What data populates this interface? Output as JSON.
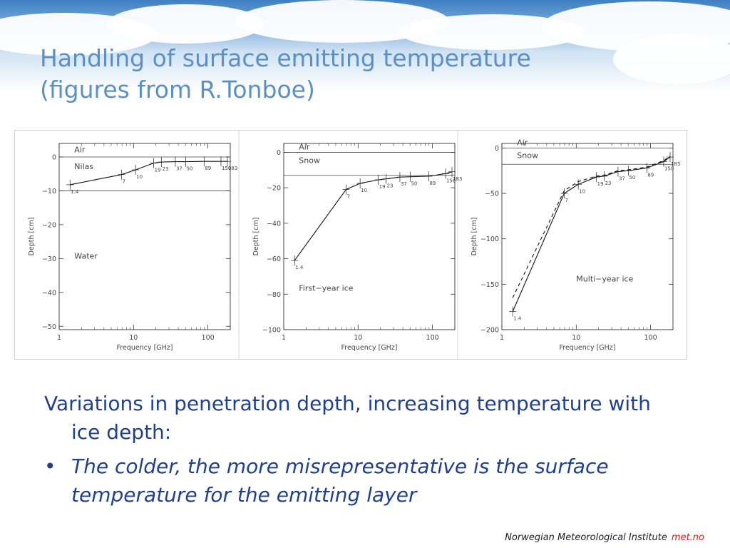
{
  "slide": {
    "title_line1": "Handling of surface emitting temperature",
    "title_line2": "(figures from R.Tonboe)",
    "paragraph": "Variations in penetration depth, increasing temperature with ice depth:",
    "bullet": "The colder, the more misrepresentative is the surface temperature for the emitting layer",
    "footer_org": "Norwegian Meteorological Institute",
    "footer_brand": "met.no",
    "colors": {
      "title": "#5a8fc7",
      "body": "#1f3f8f",
      "brand": "#d02020"
    }
  },
  "chart_data": [
    {
      "type": "line",
      "xscale": "log",
      "xlabel": "Frequency [GHz]",
      "ylabel": "Depth [cm]",
      "xlim": [
        1,
        200
      ],
      "ylim": [
        -51,
        4
      ],
      "xticks": [
        1,
        10,
        100
      ],
      "yticks": [
        0,
        -10,
        -20,
        -30,
        -40,
        -50
      ],
      "layer_lines": [
        0,
        -10
      ],
      "layer_labels": [
        {
          "text": "Air",
          "x": 1.6,
          "y": 1.4
        },
        {
          "text": "Nilas",
          "x": 1.6,
          "y": -3.6
        },
        {
          "text": "Water",
          "x": 1.6,
          "y": -30
        }
      ],
      "series": [
        {
          "style": "solid",
          "x": [
            1.4,
            6.9,
            10.65,
            18.7,
            23.8,
            36.5,
            50.3,
            89,
            150,
            183
          ],
          "y": [
            -8.2,
            -5.2,
            -3.8,
            -1.8,
            -1.5,
            -1.4,
            -1.4,
            -1.3,
            -1.3,
            -1.3
          ]
        }
      ],
      "point_labels": [
        {
          "text": "1.4",
          "x": 1.4,
          "y": -8.2
        },
        {
          "text": "7",
          "x": 6.9,
          "y": -5.2
        },
        {
          "text": "10",
          "x": 10.65,
          "y": -3.8
        },
        {
          "text": "19",
          "x": 18.7,
          "y": -1.8
        },
        {
          "text": "23",
          "x": 23.8,
          "y": -1.5
        },
        {
          "text": "37",
          "x": 36.5,
          "y": -1.4
        },
        {
          "text": "50",
          "x": 50.3,
          "y": -1.4
        },
        {
          "text": "89",
          "x": 89,
          "y": -1.3
        },
        {
          "text": "150",
          "x": 150,
          "y": -1.3
        },
        {
          "text": "183",
          "x": 183,
          "y": -1.3
        }
      ]
    },
    {
      "type": "line",
      "xscale": "log",
      "xlabel": "Frequency [GHz]",
      "ylabel": "Depth [cm]",
      "xlim": [
        1,
        200
      ],
      "ylim": [
        -100,
        5
      ],
      "xticks": [
        1,
        10,
        100
      ],
      "yticks": [
        0,
        -20,
        -40,
        -60,
        -80,
        -100
      ],
      "layer_lines": [
        0,
        -13
      ],
      "layer_labels": [
        {
          "text": "Air",
          "x": 1.6,
          "y": 1.5
        },
        {
          "text": "Snow",
          "x": 1.6,
          "y": -6
        },
        {
          "text": "First−year ice",
          "x": 1.6,
          "y": -78
        }
      ],
      "series": [
        {
          "style": "solid",
          "x": [
            1.4,
            6.9,
            10.65,
            18.7,
            23.8,
            36.5,
            50.3,
            89,
            150,
            183
          ],
          "y": [
            -61,
            -21,
            -17.5,
            -15.5,
            -15,
            -14,
            -13.8,
            -13.5,
            -12,
            -11
          ]
        }
      ],
      "point_labels": [
        {
          "text": "1.4",
          "x": 1.4,
          "y": -61
        },
        {
          "text": "7",
          "x": 6.9,
          "y": -21
        },
        {
          "text": "10",
          "x": 10.65,
          "y": -17.5
        },
        {
          "text": "19",
          "x": 18.7,
          "y": -15.5
        },
        {
          "text": "23",
          "x": 23.8,
          "y": -15
        },
        {
          "text": "37",
          "x": 36.5,
          "y": -14
        },
        {
          "text": "50",
          "x": 50.3,
          "y": -13.8
        },
        {
          "text": "89",
          "x": 89,
          "y": -13.5
        },
        {
          "text": "150",
          "x": 150,
          "y": -12
        },
        {
          "text": "183",
          "x": 183,
          "y": -11
        }
      ]
    },
    {
      "type": "line",
      "xscale": "log",
      "xlabel": "Frequency [GHz]",
      "ylabel": "Depth [cm]",
      "xlim": [
        1,
        200
      ],
      "ylim": [
        -200,
        5
      ],
      "xticks": [
        1,
        10,
        100
      ],
      "yticks": [
        0,
        -50,
        -100,
        -150,
        -200
      ],
      "layer_lines": [
        0,
        -18
      ],
      "layer_labels": [
        {
          "text": "Air",
          "x": 1.6,
          "y": 3
        },
        {
          "text": "Snow",
          "x": 1.6,
          "y": -11
        },
        {
          "text": "Multi−year ice",
          "x": 10,
          "y": -147
        }
      ],
      "series": [
        {
          "style": "solid",
          "x": [
            1.4,
            6.9,
            10.65,
            18.7,
            23.8,
            36.5,
            50.3,
            89,
            150,
            183
          ],
          "y": [
            -180,
            -50,
            -40,
            -32,
            -31,
            -26,
            -25,
            -22,
            -15,
            -10
          ]
        },
        {
          "style": "dashed",
          "x": [
            1.4,
            6.9,
            10.65,
            18.7,
            23.8,
            36.5,
            50.3,
            89,
            150,
            183
          ],
          "y": [
            -165,
            -47,
            -37,
            -31,
            -30,
            -25,
            -24,
            -21,
            -14,
            -9
          ]
        }
      ],
      "point_labels": [
        {
          "text": "1.4",
          "x": 1.4,
          "y": -180
        },
        {
          "text": "7",
          "x": 6.9,
          "y": -50
        },
        {
          "text": "10",
          "x": 10.65,
          "y": -40
        },
        {
          "text": "19",
          "x": 18.7,
          "y": -32
        },
        {
          "text": "23",
          "x": 23.8,
          "y": -31
        },
        {
          "text": "37",
          "x": 36.5,
          "y": -26
        },
        {
          "text": "50",
          "x": 50.3,
          "y": -25
        },
        {
          "text": "89",
          "x": 89,
          "y": -22
        },
        {
          "text": "150",
          "x": 150,
          "y": -15
        },
        {
          "text": "183",
          "x": 183,
          "y": -10
        }
      ]
    }
  ]
}
